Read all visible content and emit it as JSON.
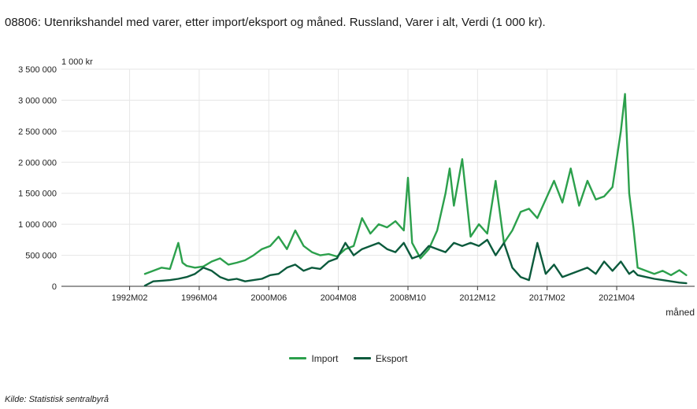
{
  "header": {
    "title": "08806: Utenrikshandel med varer, etter import/eksport og måned. Russland, Varer i alt, Verdi (1 000 kr)."
  },
  "footer": {
    "source": "Kilde:  Statistisk sentralbyrå"
  },
  "colors": {
    "import": "#2ca04c",
    "eksport": "#0b5a3c",
    "grid": "#e6e6e6",
    "axis": "#333333"
  },
  "chart_data": {
    "type": "line",
    "title": "08806: Utenrikshandel med varer, etter import/eksport og måned. Russland, Varer i alt, Verdi (1 000 kr).",
    "ylabel": "1 000 kr",
    "xlabel": "måned",
    "ylim": [
      0,
      3500000
    ],
    "xlim": [
      "1988M01",
      "2025M12"
    ],
    "yticks": [
      0,
      500000,
      1000000,
      1500000,
      2000000,
      2500000,
      3000000,
      3500000
    ],
    "ytick_labels": [
      "0",
      "500 000",
      "1 000 000",
      "1 500 000",
      "2 000 000",
      "2 500 000",
      "3 000 000",
      "3 500 000"
    ],
    "xtick_labels": [
      "1992M02",
      "1996M04",
      "2000M06",
      "2004M08",
      "2008M10",
      "2012M12",
      "2017M02",
      "2021M04"
    ],
    "grid": true,
    "legend": "bottom-center",
    "series": [
      {
        "name": "Import",
        "x": [
          "1993M01",
          "1993M07",
          "1994M01",
          "1994M07",
          "1995M01",
          "1995M04",
          "1995M07",
          "1996M01",
          "1996M07",
          "1997M01",
          "1997M07",
          "1998M01",
          "1998M07",
          "1999M01",
          "1999M07",
          "2000M01",
          "2000M07",
          "2001M01",
          "2001M07",
          "2002M01",
          "2002M07",
          "2003M01",
          "2003M07",
          "2004M01",
          "2004M07",
          "2005M01",
          "2005M07",
          "2006M01",
          "2006M07",
          "2007M01",
          "2007M07",
          "2008M01",
          "2008M07",
          "2008M10",
          "2009M01",
          "2009M07",
          "2010M01",
          "2010M07",
          "2011M01",
          "2011M04",
          "2011M07",
          "2012M01",
          "2012M07",
          "2013M01",
          "2013M07",
          "2014M01",
          "2014M07",
          "2015M01",
          "2015M07",
          "2016M01",
          "2016M07",
          "2017M01",
          "2017M07",
          "2018M01",
          "2018M07",
          "2019M01",
          "2019M07",
          "2020M01",
          "2020M07",
          "2021M01",
          "2021M07",
          "2021M10",
          "2022M01",
          "2022M04",
          "2022M07",
          "2023M01",
          "2023M07",
          "2024M01",
          "2024M07",
          "2025M01",
          "2025M06"
        ],
        "values": [
          200000,
          250000,
          300000,
          280000,
          700000,
          380000,
          330000,
          300000,
          320000,
          400000,
          450000,
          350000,
          380000,
          420000,
          500000,
          600000,
          650000,
          800000,
          600000,
          900000,
          650000,
          550000,
          500000,
          520000,
          480000,
          600000,
          650000,
          1100000,
          850000,
          1000000,
          950000,
          1050000,
          900000,
          1750000,
          700000,
          450000,
          600000,
          900000,
          1500000,
          1900000,
          1300000,
          2050000,
          800000,
          1000000,
          850000,
          1700000,
          700000,
          900000,
          1200000,
          1250000,
          1100000,
          1400000,
          1700000,
          1350000,
          1900000,
          1300000,
          1700000,
          1400000,
          1450000,
          1600000,
          2500000,
          3100000,
          1500000,
          950000,
          300000,
          250000,
          200000,
          250000,
          180000,
          260000,
          180000
        ]
      },
      {
        "name": "Eksport",
        "x": [
          "1993M01",
          "1993M07",
          "1994M01",
          "1994M07",
          "1995M01",
          "1995M07",
          "1996M01",
          "1996M07",
          "1997M01",
          "1997M07",
          "1998M01",
          "1998M07",
          "1999M01",
          "1999M07",
          "2000M01",
          "2000M07",
          "2001M01",
          "2001M07",
          "2002M01",
          "2002M07",
          "2003M01",
          "2003M07",
          "2004M01",
          "2004M07",
          "2005M01",
          "2005M07",
          "2006M01",
          "2006M07",
          "2007M01",
          "2007M07",
          "2008M01",
          "2008M07",
          "2009M01",
          "2009M07",
          "2010M01",
          "2010M07",
          "2011M01",
          "2011M07",
          "2012M01",
          "2012M07",
          "2013M01",
          "2013M07",
          "2014M01",
          "2014M07",
          "2015M01",
          "2015M07",
          "2016M01",
          "2016M07",
          "2017M01",
          "2017M07",
          "2018M01",
          "2018M07",
          "2019M01",
          "2019M07",
          "2020M01",
          "2020M07",
          "2021M01",
          "2021M07",
          "2022M01",
          "2022M04",
          "2022M07",
          "2023M01",
          "2023M07",
          "2024M01",
          "2024M07",
          "2025M01",
          "2025M06"
        ],
        "values": [
          10000,
          80000,
          90000,
          100000,
          120000,
          150000,
          200000,
          300000,
          250000,
          150000,
          100000,
          120000,
          80000,
          100000,
          120000,
          180000,
          200000,
          300000,
          350000,
          250000,
          300000,
          280000,
          400000,
          450000,
          700000,
          500000,
          600000,
          650000,
          700000,
          600000,
          550000,
          700000,
          450000,
          500000,
          650000,
          600000,
          550000,
          700000,
          650000,
          700000,
          650000,
          750000,
          500000,
          700000,
          300000,
          150000,
          100000,
          700000,
          200000,
          350000,
          150000,
          200000,
          250000,
          300000,
          200000,
          400000,
          250000,
          400000,
          200000,
          250000,
          180000,
          150000,
          120000,
          100000,
          80000,
          60000,
          50000
        ]
      }
    ]
  }
}
